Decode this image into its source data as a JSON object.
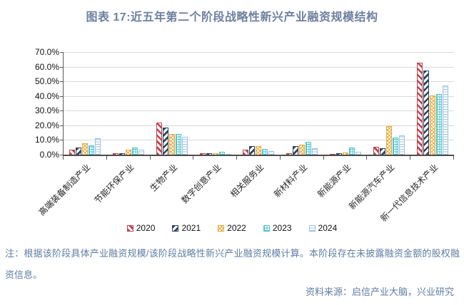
{
  "chart_data": {
    "type": "bar",
    "title": "图表 17:近五年第二个阶段战略性新兴产业融资规模结构",
    "categories": [
      "高端装备制造产业",
      "节能环保产业",
      "生物产业",
      "数字创意产业",
      "相关服务业",
      "新材料产业",
      "新能源产业",
      "新能源汽车产业",
      "新一代信息技术产业"
    ],
    "series": [
      {
        "name": "2020",
        "color": "#C0424D",
        "pattern": "diagonal-down",
        "values": [
          3.5,
          0.8,
          22.0,
          1.0,
          3.3,
          1.2,
          0.5,
          5.5,
          62.7
        ]
      },
      {
        "name": "2021",
        "color": "#2B4562",
        "pattern": "diagonal-up",
        "values": [
          4.7,
          0.9,
          18.5,
          1.0,
          5.6,
          6.0,
          0.9,
          4.5,
          57.3
        ]
      },
      {
        "name": "2022",
        "color": "#E9A93E",
        "pattern": "crosshatch",
        "values": [
          7.7,
          3.2,
          14.0,
          0.8,
          5.9,
          7.0,
          1.4,
          19.5,
          40.5
        ]
      },
      {
        "name": "2023",
        "color": "#52C5CC",
        "pattern": "grid",
        "values": [
          6.2,
          4.8,
          14.3,
          2.0,
          3.9,
          9.0,
          5.0,
          11.8,
          41.5
        ]
      },
      {
        "name": "2024",
        "color": "#9CC3E3",
        "pattern": "horizontal",
        "values": [
          11.0,
          3.6,
          12.3,
          0.5,
          2.6,
          4.3,
          2.0,
          13.0,
          47.0
        ]
      }
    ],
    "ylim": [
      0,
      70
    ],
    "ytick_step": 10,
    "yticks": [
      "0.0%",
      "10.0%",
      "20.0%",
      "30.0%",
      "40.0%",
      "50.0%",
      "60.0%",
      "70.0%"
    ],
    "grid": true,
    "legend_position": "bottom"
  },
  "note": "注：根据该阶段具体产业融资规模/该阶段战略性新兴产业融资规模计算。本阶段存在未披露融资金额的股权融资信息。",
  "source": "资料来源：启信产业大脑，兴业研究",
  "colors": {
    "title": "#6E80A0",
    "note": "#5F7EA1",
    "axis": "#595959",
    "gridline": "#D9D9D9",
    "bar_background": "#FFFFFF"
  }
}
